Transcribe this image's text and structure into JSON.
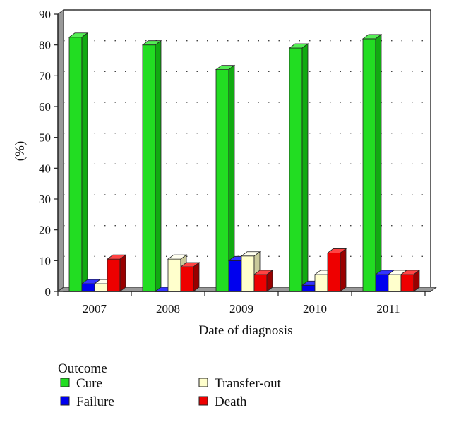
{
  "chart_data": {
    "type": "bar",
    "title": "",
    "xlabel": "Date of diagnosis",
    "ylabel": "(%)",
    "ylim": [
      0,
      90
    ],
    "yticks": [
      0,
      10,
      20,
      30,
      40,
      50,
      60,
      70,
      80,
      90
    ],
    "grid": true,
    "legend_placement": "bottom-left",
    "legend_title": "Outcome",
    "categories": [
      "2007",
      "2008",
      "2009",
      "2010",
      "2011"
    ],
    "series": [
      {
        "name": "Cure",
        "values": [
          82.5,
          80,
          72,
          79,
          82
        ],
        "color": "#22dd22",
        "side": "#11aa11",
        "top": "#55ee55"
      },
      {
        "name": "Failure",
        "values": [
          2.5,
          0,
          10,
          2,
          5.5
        ],
        "color": "#0000ee",
        "side": "#000099",
        "top": "#3333ff"
      },
      {
        "name": "Transfer-out",
        "values": [
          2.5,
          10.5,
          11.5,
          5.5,
          5.5
        ],
        "color": "#ffffcc",
        "side": "#c9c99a",
        "top": "#fffff0"
      },
      {
        "name": "Death",
        "values": [
          10.5,
          8,
          5.5,
          12.5,
          5.5
        ],
        "color": "#ee0000",
        "side": "#990000",
        "top": "#ff4444"
      }
    ]
  }
}
